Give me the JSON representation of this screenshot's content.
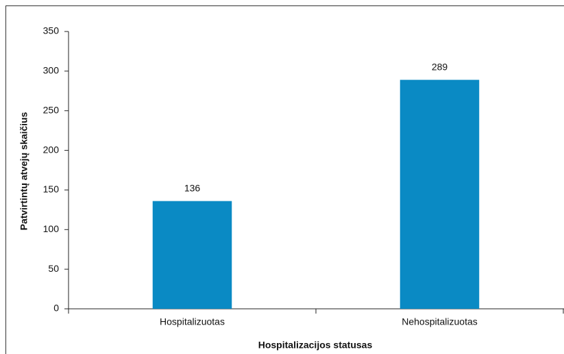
{
  "chart_data": {
    "type": "bar",
    "categories": [
      "Hospitalizuotas",
      "Nehospitalizuotas"
    ],
    "values": [
      136,
      289
    ],
    "color": "#0a8ac4",
    "xlabel": "Hospitalizacijos statusas",
    "ylabel": "Patvirtintų atvejų skaičius",
    "ylim": [
      0,
      350
    ],
    "yticks": [
      0,
      50,
      100,
      150,
      200,
      250,
      300,
      350
    ],
    "grid": false,
    "data_labels": true
  }
}
